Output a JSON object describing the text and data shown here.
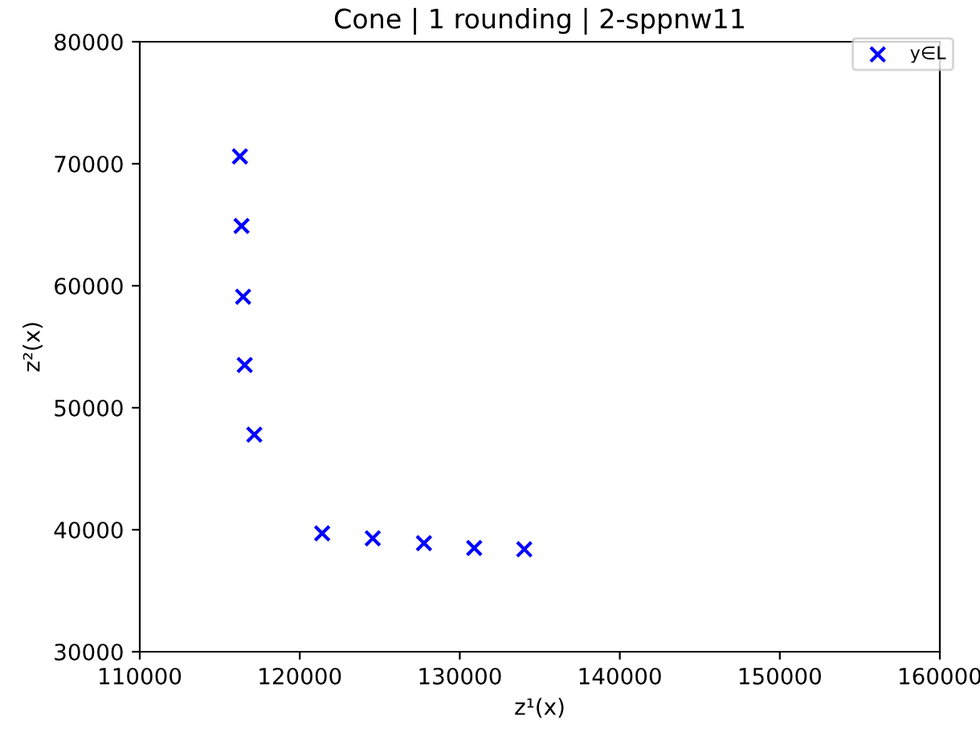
{
  "chart_data": {
    "type": "scatter",
    "title": "Cone | 1 rounding | 2-sppnw11",
    "xlabel": "z¹(x)",
    "ylabel": "z²(x)",
    "xlim": [
      110000,
      160000
    ],
    "xticks": [
      110000,
      120000,
      130000,
      140000,
      150000,
      160000
    ],
    "ylim": [
      30000,
      80000
    ],
    "yticks": [
      30000,
      40000,
      50000,
      60000,
      70000,
      80000
    ],
    "grid": false,
    "legend": "top right",
    "marker": "cross",
    "series": [
      {
        "name": "y∈L",
        "color": "#0000ff",
        "x": [
          116260,
          116360,
          116460,
          116560,
          117160,
          121400,
          124560,
          127760,
          130900,
          134030
        ],
        "values": [
          70600,
          64900,
          59100,
          53500,
          47800,
          39700,
          39300,
          38900,
          38500,
          38400
        ]
      }
    ]
  }
}
